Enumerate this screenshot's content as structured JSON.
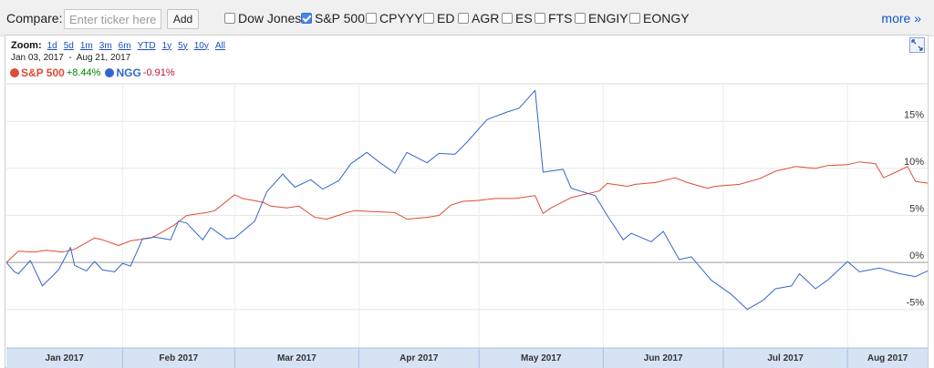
{
  "compare": {
    "label": "Compare:",
    "placeholder": "Enter ticker here",
    "add_label": "Add",
    "items": [
      {
        "label": "Dow Jones",
        "checked": false
      },
      {
        "label": "S&P 500",
        "checked": true
      },
      {
        "label": "CPYYY",
        "checked": false
      },
      {
        "label": "ED",
        "checked": false
      },
      {
        "label": "AGR",
        "checked": false
      },
      {
        "label": "ES",
        "checked": false
      },
      {
        "label": "FTS",
        "checked": false
      },
      {
        "label": "ENGIY",
        "checked": false
      },
      {
        "label": "EONGY",
        "checked": false
      }
    ],
    "more_label": "more »"
  },
  "zoom": {
    "label": "Zoom:",
    "options": [
      "1d",
      "5d",
      "1m",
      "3m",
      "6m",
      "YTD",
      "1y",
      "5y",
      "10y",
      "All"
    ]
  },
  "date_range": "Jan 03, 2017  -  Aug 21, 2017",
  "legend": [
    {
      "name": "S&P 500",
      "change": "+8.44%",
      "dot_color": "#dd4b39",
      "change_color": "#008000"
    },
    {
      "name": "NGG",
      "change": "-0.91%",
      "dot_color": "#3366cc",
      "change_color": "#c0143c"
    }
  ],
  "chart_data": {
    "type": "line",
    "y_unit": "percent change",
    "ylim": [
      -9,
      19
    ],
    "xlim": [
      "2017-01-03",
      "2017-08-21"
    ],
    "y_ticks": [
      15,
      10,
      5,
      0,
      -5
    ],
    "y_tick_labels": [
      "15%",
      "10%",
      "5%",
      "0%",
      "-5%"
    ],
    "x_month_labels": [
      "Jan 2017",
      "Feb 2017",
      "Mar 2017",
      "Apr 2017",
      "May 2017",
      "Jun 2017",
      "Jul 2017",
      "Aug 2017"
    ],
    "x_month_dates": [
      "2017-01-01",
      "2017-02-01",
      "2017-03-01",
      "2017-04-01",
      "2017-05-01",
      "2017-06-01",
      "2017-07-01",
      "2017-08-01"
    ],
    "grid": true,
    "series": [
      {
        "name": "S&P 500",
        "color": "#dd4b39",
        "points": [
          [
            "2017-01-03",
            0.0
          ],
          [
            "2017-01-06",
            1.2
          ],
          [
            "2017-01-10",
            1.1
          ],
          [
            "2017-01-13",
            1.3
          ],
          [
            "2017-01-17",
            1.1
          ],
          [
            "2017-01-20",
            1.4
          ],
          [
            "2017-01-25",
            2.6
          ],
          [
            "2017-01-27",
            2.4
          ],
          [
            "2017-01-31",
            1.8
          ],
          [
            "2017-02-03",
            2.3
          ],
          [
            "2017-02-08",
            2.6
          ],
          [
            "2017-02-10",
            3.0
          ],
          [
            "2017-02-14",
            4.0
          ],
          [
            "2017-02-17",
            5.0
          ],
          [
            "2017-02-22",
            5.3
          ],
          [
            "2017-02-24",
            5.5
          ],
          [
            "2017-03-01",
            7.2
          ],
          [
            "2017-03-03",
            6.8
          ],
          [
            "2017-03-08",
            6.4
          ],
          [
            "2017-03-10",
            6.0
          ],
          [
            "2017-03-14",
            5.8
          ],
          [
            "2017-03-17",
            6.0
          ],
          [
            "2017-03-21",
            4.8
          ],
          [
            "2017-03-24",
            4.6
          ],
          [
            "2017-03-29",
            5.3
          ],
          [
            "2017-03-31",
            5.5
          ],
          [
            "2017-04-05",
            5.4
          ],
          [
            "2017-04-10",
            5.3
          ],
          [
            "2017-04-13",
            4.6
          ],
          [
            "2017-04-18",
            4.8
          ],
          [
            "2017-04-21",
            5.0
          ],
          [
            "2017-04-24",
            6.1
          ],
          [
            "2017-04-27",
            6.5
          ],
          [
            "2017-05-01",
            6.6
          ],
          [
            "2017-05-05",
            6.8
          ],
          [
            "2017-05-10",
            6.8
          ],
          [
            "2017-05-15",
            7.1
          ],
          [
            "2017-05-17",
            5.2
          ],
          [
            "2017-05-19",
            5.8
          ],
          [
            "2017-05-24",
            6.9
          ],
          [
            "2017-05-31",
            7.6
          ],
          [
            "2017-06-02",
            8.4
          ],
          [
            "2017-06-07",
            8.1
          ],
          [
            "2017-06-09",
            8.3
          ],
          [
            "2017-06-14",
            8.5
          ],
          [
            "2017-06-19",
            9.0
          ],
          [
            "2017-06-22",
            8.5
          ],
          [
            "2017-06-27",
            7.9
          ],
          [
            "2017-06-29",
            8.1
          ],
          [
            "2017-07-05",
            8.3
          ],
          [
            "2017-07-10",
            8.9
          ],
          [
            "2017-07-14",
            9.7
          ],
          [
            "2017-07-19",
            10.2
          ],
          [
            "2017-07-24",
            10.0
          ],
          [
            "2017-07-27",
            10.3
          ],
          [
            "2017-08-01",
            10.4
          ],
          [
            "2017-08-04",
            10.7
          ],
          [
            "2017-08-08",
            10.5
          ],
          [
            "2017-08-10",
            9.0
          ],
          [
            "2017-08-14",
            9.8
          ],
          [
            "2017-08-16",
            10.2
          ],
          [
            "2017-08-18",
            8.6
          ],
          [
            "2017-08-21",
            8.44
          ]
        ]
      },
      {
        "name": "NGG",
        "color": "#3366cc",
        "points": [
          [
            "2017-01-03",
            0.0
          ],
          [
            "2017-01-05",
            -1.0
          ],
          [
            "2017-01-06",
            -1.2
          ],
          [
            "2017-01-09",
            0.2
          ],
          [
            "2017-01-12",
            -2.5
          ],
          [
            "2017-01-16",
            -0.8
          ],
          [
            "2017-01-19",
            1.6
          ],
          [
            "2017-01-20",
            -0.3
          ],
          [
            "2017-01-23",
            -0.9
          ],
          [
            "2017-01-25",
            0.1
          ],
          [
            "2017-01-27",
            -0.8
          ],
          [
            "2017-01-30",
            -1.0
          ],
          [
            "2017-02-01",
            -0.1
          ],
          [
            "2017-02-03",
            -0.4
          ],
          [
            "2017-02-06",
            2.5
          ],
          [
            "2017-02-09",
            2.7
          ],
          [
            "2017-02-13",
            2.4
          ],
          [
            "2017-02-15",
            4.4
          ],
          [
            "2017-02-17",
            4.2
          ],
          [
            "2017-02-21",
            2.4
          ],
          [
            "2017-02-23",
            3.7
          ],
          [
            "2017-02-27",
            2.5
          ],
          [
            "2017-03-01",
            2.6
          ],
          [
            "2017-03-06",
            4.4
          ],
          [
            "2017-03-09",
            7.5
          ],
          [
            "2017-03-13",
            9.4
          ],
          [
            "2017-03-16",
            8.0
          ],
          [
            "2017-03-20",
            8.8
          ],
          [
            "2017-03-23",
            7.8
          ],
          [
            "2017-03-27",
            8.7
          ],
          [
            "2017-03-30",
            10.5
          ],
          [
            "2017-04-03",
            11.7
          ],
          [
            "2017-04-06",
            10.7
          ],
          [
            "2017-04-10",
            9.5
          ],
          [
            "2017-04-13",
            11.7
          ],
          [
            "2017-04-18",
            10.6
          ],
          [
            "2017-04-21",
            11.6
          ],
          [
            "2017-04-25",
            11.5
          ],
          [
            "2017-04-28",
            12.8
          ],
          [
            "2017-05-03",
            15.2
          ],
          [
            "2017-05-08",
            16.0
          ],
          [
            "2017-05-11",
            16.4
          ],
          [
            "2017-05-15",
            18.3
          ],
          [
            "2017-05-17",
            9.6
          ],
          [
            "2017-05-22",
            9.9
          ],
          [
            "2017-05-24",
            7.9
          ],
          [
            "2017-05-30",
            7.1
          ],
          [
            "2017-06-02",
            5.0
          ],
          [
            "2017-06-06",
            2.4
          ],
          [
            "2017-06-08",
            3.1
          ],
          [
            "2017-06-13",
            2.2
          ],
          [
            "2017-06-16",
            3.3
          ],
          [
            "2017-06-20",
            0.3
          ],
          [
            "2017-06-23",
            0.6
          ],
          [
            "2017-06-28",
            -1.9
          ],
          [
            "2017-07-03",
            -3.4
          ],
          [
            "2017-07-07",
            -5.0
          ],
          [
            "2017-07-11",
            -4.0
          ],
          [
            "2017-07-14",
            -2.8
          ],
          [
            "2017-07-18",
            -2.5
          ],
          [
            "2017-07-20",
            -1.2
          ],
          [
            "2017-07-24",
            -2.8
          ],
          [
            "2017-07-27",
            -1.9
          ],
          [
            "2017-08-01",
            0.1
          ],
          [
            "2017-08-04",
            -1.0
          ],
          [
            "2017-08-09",
            -0.6
          ],
          [
            "2017-08-14",
            -1.2
          ],
          [
            "2017-08-18",
            -1.5
          ],
          [
            "2017-08-21",
            -0.91
          ]
        ]
      }
    ]
  }
}
